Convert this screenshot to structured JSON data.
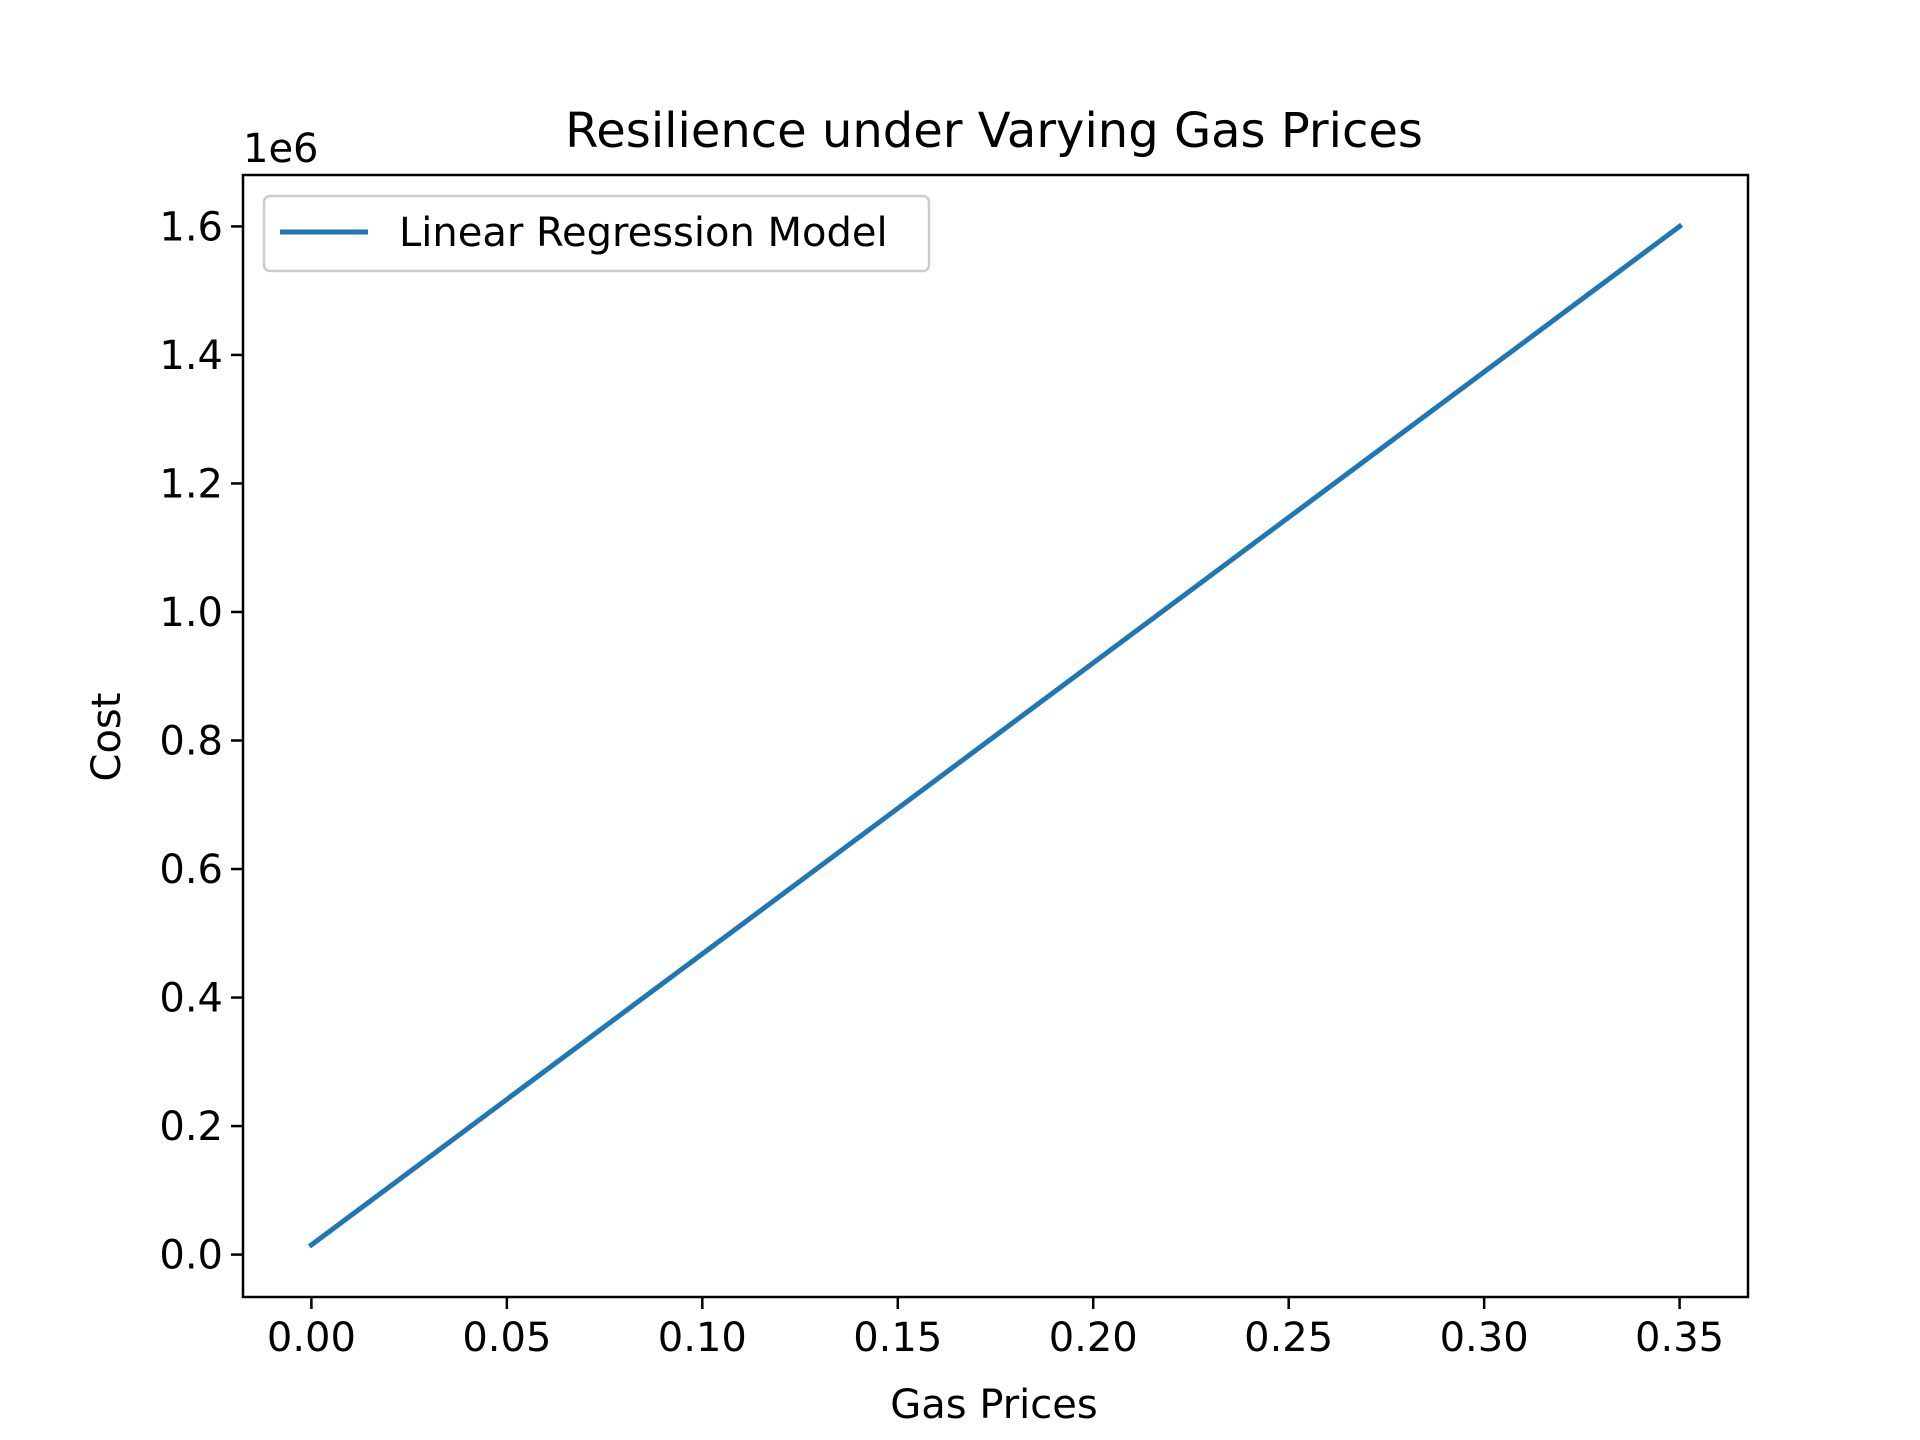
{
  "chart_data": {
    "type": "line",
    "title": "Resilience under Varying Gas Prices",
    "xlabel": "Gas Prices",
    "ylabel": "Cost",
    "y_offset_label": "1e6",
    "xlim": [
      -0.0175,
      0.3675
    ],
    "ylim": [
      -66000,
      1680000
    ],
    "xticks": [
      0.0,
      0.05,
      0.1,
      0.15,
      0.2,
      0.25,
      0.3,
      0.35
    ],
    "xtick_labels": [
      "0.00",
      "0.05",
      "0.10",
      "0.15",
      "0.20",
      "0.25",
      "0.30",
      "0.35"
    ],
    "yticks": [
      0,
      200000,
      400000,
      600000,
      800000,
      1000000,
      1200000,
      1400000,
      1600000
    ],
    "ytick_labels": [
      "0.0",
      "0.2",
      "0.4",
      "0.6",
      "0.8",
      "1.0",
      "1.2",
      "1.4",
      "1.6"
    ],
    "grid": false,
    "legend_position": "upper-left",
    "series": [
      {
        "name": "Linear Regression Model",
        "color": "#1f77b4",
        "x": [
          0.0,
          0.35
        ],
        "y": [
          15000,
          1600000
        ]
      }
    ]
  }
}
